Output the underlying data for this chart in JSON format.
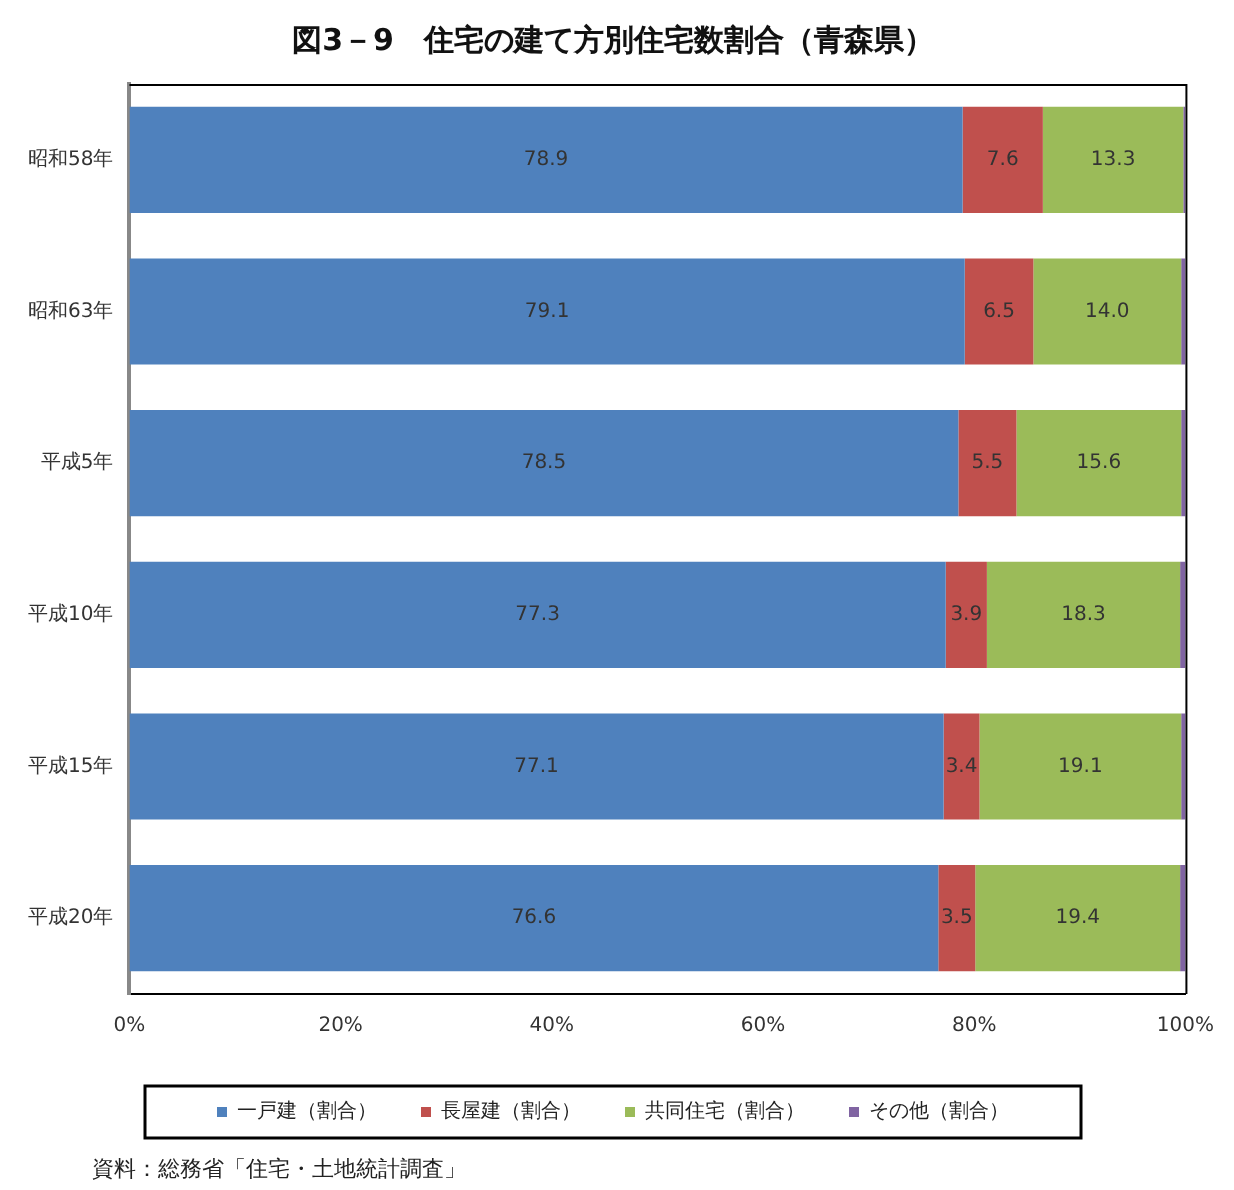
{
  "chart_data": {
    "type": "bar",
    "orientation": "horizontal",
    "stacked": true,
    "title": "図3－9　住宅の建て方別住宅数割合（青森県）",
    "categories": [
      "昭和58年",
      "昭和63年",
      "平成5年",
      "平成10年",
      "平成15年",
      "平成20年"
    ],
    "series": [
      {
        "name": "一戸建（割合）",
        "color": "#4f81bd",
        "values": [
          78.9,
          79.1,
          78.5,
          77.3,
          77.1,
          76.6
        ],
        "value_labels": [
          "78.9",
          "79.1",
          "78.5",
          "77.3",
          "77.1",
          "76.6"
        ]
      },
      {
        "name": "長屋建（割合）",
        "color": "#c0504d",
        "values": [
          7.6,
          6.5,
          5.5,
          3.9,
          3.4,
          3.5
        ],
        "value_labels": [
          "7.6",
          "6.5",
          "5.5",
          "3.9",
          "3.4",
          "3.5"
        ]
      },
      {
        "name": "共同住宅（割合）",
        "color": "#9bbb59",
        "values": [
          13.3,
          14.0,
          15.6,
          18.3,
          19.1,
          19.4
        ],
        "value_labels": [
          "13.3",
          "14.0",
          "15.6",
          "18.3",
          "19.1",
          "19.4"
        ]
      },
      {
        "name": "その他（割合）",
        "color": "#8064a2",
        "values": [
          0.2,
          0.4,
          0.4,
          0.5,
          0.4,
          0.5
        ]
      }
    ],
    "xlim": [
      0,
      100
    ],
    "xticks": [
      {
        "value": 0,
        "label": "0%"
      },
      {
        "value": 20,
        "label": "20%"
      },
      {
        "value": 40,
        "label": "40%"
      },
      {
        "value": 60,
        "label": "60%"
      },
      {
        "value": 80,
        "label": "80%"
      },
      {
        "value": 100,
        "label": "100%"
      }
    ],
    "grid": false,
    "legend": "bottom",
    "annotations": [
      "資料：総務省「住宅・土地統計調査」"
    ]
  }
}
